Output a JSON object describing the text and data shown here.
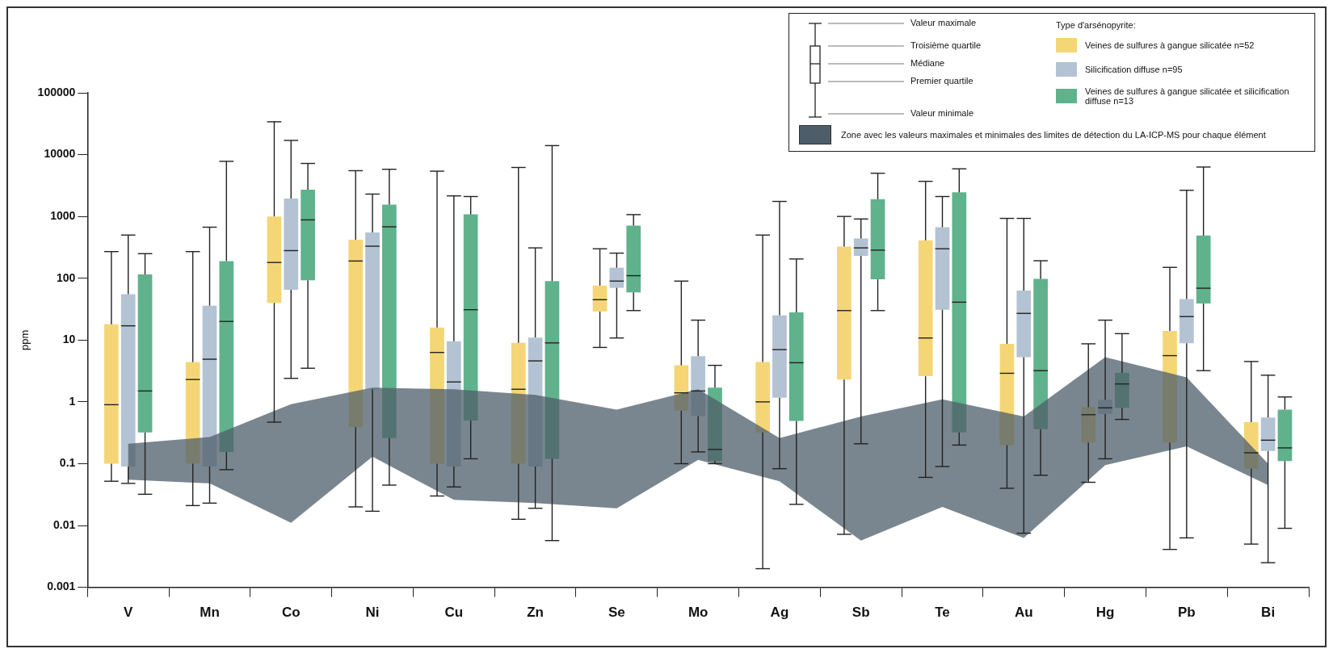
{
  "chart_data": {
    "type": "box",
    "ylabel": "ppm",
    "log": "y",
    "ylim": [
      0.001,
      100000
    ],
    "yticks": [
      0.001,
      0.01,
      0.1,
      1,
      10,
      100,
      1000,
      10000,
      100000
    ],
    "legend": "top right",
    "legend_title": "Type d'arsénopyrite:",
    "annotations": [
      "Valeur maximale",
      "Troisième quartile",
      "Médiane",
      "Premier quartile",
      "Valeur minimale"
    ],
    "categories": [
      "V",
      "Mn",
      "Co",
      "Ni",
      "Cu",
      "Zn",
      "Se",
      "Mo",
      "Ag",
      "Sb",
      "Te",
      "Au",
      "Hg",
      "Pb",
      "Bi"
    ],
    "series": [
      {
        "name": "Veines de sulfures à gangue silicatée n=52",
        "color": "#f5d676",
        "boxes": [
          {
            "low": 0.052,
            "q1": 0.1,
            "median": 0.9,
            "q3": 18,
            "high": 270
          },
          {
            "low": 0.021,
            "q1": 0.1,
            "median": 2.3,
            "q3": 4.4,
            "high": 270
          },
          {
            "low": 0.47,
            "q1": 40,
            "median": 180,
            "q3": 1000,
            "high": 34000
          },
          {
            "low": 0.02,
            "q1": 0.39,
            "median": 190,
            "q3": 420,
            "high": 5500
          },
          {
            "low": 0.03,
            "q1": 0.1,
            "median": 6.3,
            "q3": 16,
            "high": 5400
          },
          {
            "low": 0.0126,
            "q1": 0.1,
            "median": 1.6,
            "q3": 9,
            "high": 6200
          },
          {
            "low": 7.6,
            "q1": 29,
            "median": 45,
            "q3": 76,
            "high": 300
          },
          {
            "low": 0.1,
            "q1": 0.72,
            "median": 1.4,
            "q3": 3.9,
            "high": 90
          },
          {
            "low": 0.002,
            "q1": 0.32,
            "median": 1,
            "q3": 4.4,
            "high": 500
          },
          {
            "low": 0.0072,
            "q1": 2.3,
            "median": 30,
            "q3": 325,
            "high": 1000
          },
          {
            "low": 0.06,
            "q1": 2.6,
            "median": 10.8,
            "q3": 410,
            "high": 3700
          },
          {
            "low": 0.04,
            "q1": 0.2,
            "median": 2.9,
            "q3": 8.7,
            "high": 930
          },
          {
            "low": 0.05,
            "q1": 0.22,
            "median": 0.62,
            "q3": 0.82,
            "high": 8.7
          },
          {
            "low": 0.0041,
            "q1": 0.22,
            "median": 5.6,
            "q3": 14,
            "high": 150
          },
          {
            "low": 0.005,
            "q1": 0.083,
            "median": 0.15,
            "q3": 0.47,
            "high": 4.5
          }
        ]
      },
      {
        "name": "Silicification diffuse n=95",
        "color": "#b3c3d3",
        "boxes": [
          {
            "low": 0.048,
            "q1": 0.09,
            "median": 17,
            "q3": 55,
            "high": 500
          },
          {
            "low": 0.023,
            "q1": 0.09,
            "median": 4.9,
            "q3": 36,
            "high": 670
          },
          {
            "low": 2.4,
            "q1": 65,
            "median": 280,
            "q3": 1950,
            "high": 17000
          },
          {
            "low": 0.017,
            "q1": 1.6,
            "median": 330,
            "q3": 550,
            "high": 2300
          },
          {
            "low": 0.042,
            "q1": 0.09,
            "median": 2.1,
            "q3": 9.6,
            "high": 2150
          },
          {
            "low": 0.019,
            "q1": 0.09,
            "median": 4.6,
            "q3": 11,
            "high": 310
          },
          {
            "low": 10.8,
            "q1": 70,
            "median": 90,
            "q3": 148,
            "high": 255
          },
          {
            "low": 0.155,
            "q1": 0.59,
            "median": 1.5,
            "q3": 5.5,
            "high": 21
          },
          {
            "low": 0.083,
            "q1": 1.17,
            "median": 7,
            "q3": 25,
            "high": 1750
          },
          {
            "low": 0.21,
            "q1": 230,
            "median": 310,
            "q3": 440,
            "high": 910
          },
          {
            "low": 0.09,
            "q1": 31,
            "median": 300,
            "q3": 670,
            "high": 2100
          },
          {
            "low": 0.0075,
            "q1": 5.3,
            "median": 27,
            "q3": 63,
            "high": 930
          },
          {
            "low": 0.12,
            "q1": 0.64,
            "median": 0.8,
            "q3": 1.08,
            "high": 21
          },
          {
            "low": 0.0063,
            "q1": 8.9,
            "median": 24,
            "q3": 46,
            "high": 2650
          },
          {
            "low": 0.0025,
            "q1": 0.16,
            "median": 0.24,
            "q3": 0.56,
            "high": 2.7
          }
        ]
      },
      {
        "name": "Veines de sulfures à gangue silicatée et silicification diffuse n=13",
        "color": "#5fb28c",
        "boxes": [
          {
            "low": 0.032,
            "q1": 0.32,
            "median": 1.5,
            "q3": 115,
            "high": 250
          },
          {
            "low": 0.08,
            "q1": 0.155,
            "median": 20,
            "q3": 190,
            "high": 7800
          },
          {
            "low": 3.5,
            "q1": 93,
            "median": 880,
            "q3": 2700,
            "high": 7200
          },
          {
            "low": 0.045,
            "q1": 0.26,
            "median": 680,
            "q3": 1550,
            "high": 5800
          },
          {
            "low": 0.12,
            "q1": 0.5,
            "median": 31,
            "q3": 1080,
            "high": 2100
          },
          {
            "low": 0.0057,
            "q1": 0.12,
            "median": 9,
            "q3": 90,
            "high": 14000
          },
          {
            "low": 30,
            "q1": 59,
            "median": 110,
            "q3": 710,
            "high": 1070
          },
          {
            "low": 0.1,
            "q1": 0.11,
            "median": 0.17,
            "q3": 1.7,
            "high": 3.9
          },
          {
            "low": 0.022,
            "q1": 0.49,
            "median": 4.3,
            "q3": 28,
            "high": 205
          },
          {
            "low": 30,
            "q1": 96,
            "median": 285,
            "q3": 1900,
            "high": 5000
          },
          {
            "low": 0.2,
            "q1": 0.32,
            "median": 41,
            "q3": 2450,
            "high": 5900
          },
          {
            "low": 0.065,
            "q1": 0.36,
            "median": 3.2,
            "q3": 98,
            "high": 192
          },
          {
            "low": 0.52,
            "q1": 0.8,
            "median": 1.95,
            "q3": 2.95,
            "high": 12.7
          },
          {
            "low": 3.2,
            "q1": 39,
            "median": 69,
            "q3": 490,
            "high": 6300
          },
          {
            "low": 0.009,
            "q1": 0.11,
            "median": 0.18,
            "q3": 0.75,
            "high": 1.2
          }
        ]
      },
      {
        "name": "Zone avec les valeurs maximales et minimales des limites de détection du LA-ICP-MS pour chaque élément",
        "color": "#4d5d69",
        "type": "area",
        "lower": [
          0.055,
          0.048,
          0.011,
          0.13,
          0.026,
          0.023,
          0.019,
          0.115,
          0.052,
          0.0057,
          0.02,
          0.0063,
          0.095,
          0.19,
          0.045
        ],
        "values": [
          null,
          null,
          null,
          null,
          null,
          null,
          null,
          null,
          null,
          null,
          null,
          null,
          null,
          null,
          null
        ],
        "upper": [
          0.21,
          0.27,
          0.92,
          1.7,
          1.6,
          1.3,
          0.75,
          1.6,
          0.26,
          0.58,
          1.1,
          0.58,
          5.3,
          2.5,
          0.1
        ]
      }
    ]
  }
}
